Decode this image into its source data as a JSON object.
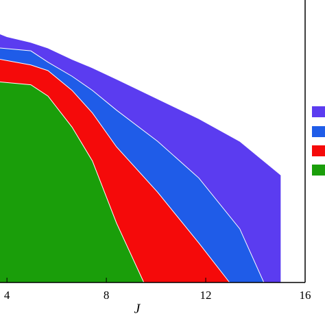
{
  "chart_data": {
    "type": "area",
    "xlabel": "J",
    "xlim": [
      3.72,
      16
    ],
    "xticks": [
      4,
      8,
      12,
      16
    ],
    "ylim": [
      0,
      100
    ],
    "series": [
      {
        "color": "#5b3cf0",
        "x": [
          3.72,
          4,
          4.96,
          5.65,
          6.62,
          7.44,
          8.41,
          10.06,
          11.72,
          13.37,
          15.03,
          15.03
        ],
        "values": [
          88,
          87,
          85,
          83,
          79,
          76,
          72,
          65,
          58,
          50,
          38,
          0
        ]
      },
      {
        "color": "#1f5ce8",
        "x": [
          3.72,
          4.96,
          5.65,
          6.62,
          7.44,
          8.41,
          10.06,
          11.72,
          13.37,
          14.34
        ],
        "values": [
          83,
          82,
          78,
          73,
          68,
          61,
          50,
          37,
          19,
          0
        ]
      },
      {
        "color": "#f50a0a",
        "x": [
          3.72,
          4.96,
          5.65,
          6.62,
          7.44,
          8.41,
          10.06,
          11.72,
          12.96
        ],
        "values": [
          79,
          77,
          75,
          68,
          60,
          48,
          32,
          14,
          0
        ]
      },
      {
        "color": "#1a9e0a",
        "x": [
          3.72,
          4.96,
          5.65,
          6.62,
          7.44,
          8.41,
          9.51
        ],
        "values": [
          71,
          70,
          66,
          55,
          43,
          21,
          0
        ]
      }
    ]
  }
}
